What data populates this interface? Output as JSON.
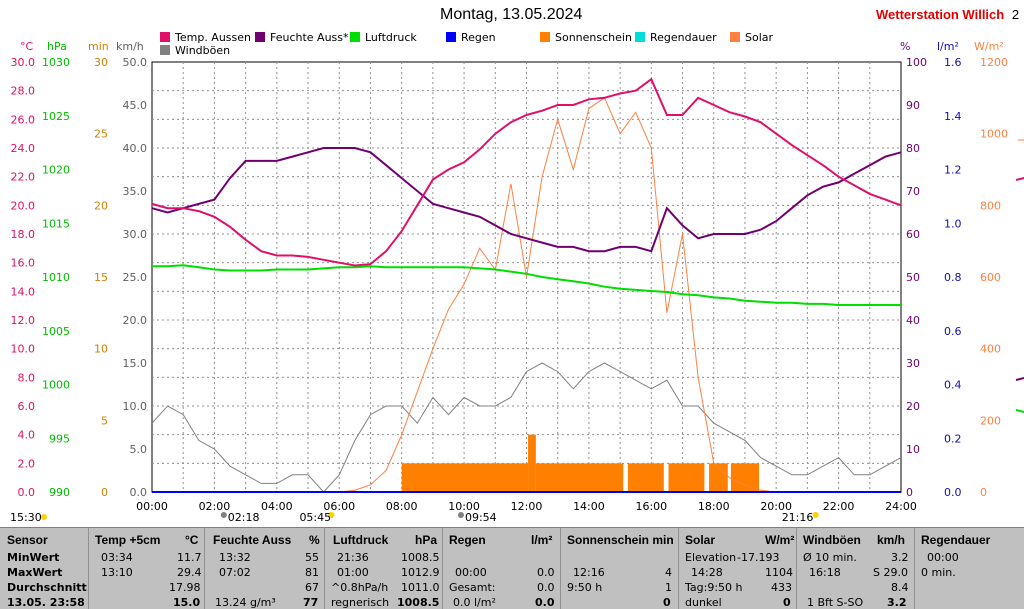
{
  "header": {
    "date_title": "Montag, 13.05.2024",
    "station_name": "Wetterstation Willich",
    "station_suffix": "2"
  },
  "legend": [
    {
      "label": "Temp. Aussen",
      "color": "#e0106a"
    },
    {
      "label": "Feuchte Auss*",
      "color": "#700070"
    },
    {
      "label": "Luftdruck",
      "color": "#00dd00"
    },
    {
      "label": "Regen",
      "color": "#0000ff"
    },
    {
      "label": "Sonnenschein",
      "color": "#ff8000"
    },
    {
      "label": "Regendauer",
      "color": "#00dddd"
    },
    {
      "label": "Solar",
      "color": "#ff8040"
    },
    {
      "label": "Windböen",
      "color": "#808080"
    }
  ],
  "axes_units": {
    "temp": "°C",
    "hpa": "hPa",
    "min": "min",
    "kmh": "km/h",
    "pct": "%",
    "lm2": "l/m²",
    "wm2": "W/m²"
  },
  "axis_ticks": {
    "temp": [
      "30.0",
      "28.0",
      "26.0",
      "24.0",
      "22.0",
      "20.0",
      "18.0",
      "16.0",
      "14.0",
      "12.0",
      "10.0",
      "8.0",
      "6.0",
      "4.0",
      "2.0",
      "0.0"
    ],
    "hpa": [
      "1030",
      "1025",
      "1020",
      "1015",
      "1010",
      "1005",
      "1000",
      "995",
      "990"
    ],
    "min": [
      "30",
      "25",
      "20",
      "15",
      "10",
      "5",
      "0"
    ],
    "kmh": [
      "50.0",
      "45.0",
      "40.0",
      "35.0",
      "30.0",
      "25.0",
      "20.0",
      "15.0",
      "10.0",
      "5.0",
      "0.0"
    ],
    "pct": [
      "100",
      "90",
      "80",
      "70",
      "60",
      "50",
      "40",
      "30",
      "20",
      "10",
      "0"
    ],
    "lm2": [
      "1.6",
      "1.4",
      "1.2",
      "1.0",
      "0.8",
      "0.6",
      "0.4",
      "0.2",
      "0.0"
    ],
    "wm2": [
      "1200",
      "1000",
      "800",
      "600",
      "400",
      "200",
      "0"
    ],
    "time": [
      "00:00",
      "02:00",
      "04:00",
      "06:00",
      "08:00",
      "10:00",
      "12:00",
      "14:00",
      "16:00",
      "18:00",
      "20:00",
      "22:00",
      "24:00"
    ]
  },
  "sun_markers": {
    "left": "15:30",
    "moonset": "02:18",
    "sunrise": "05:45",
    "moonrise": "09:54",
    "sunset": "21:16"
  },
  "chart_data": {
    "type": "line",
    "title": "Montag, 13.05.2024",
    "x": [
      0,
      0.5,
      1,
      1.5,
      2,
      2.5,
      3,
      3.5,
      4,
      4.5,
      5,
      5.5,
      6,
      6.5,
      7,
      7.5,
      8,
      8.5,
      9,
      9.5,
      10,
      10.5,
      11,
      11.5,
      12,
      12.5,
      13,
      13.5,
      14,
      14.5,
      15,
      15.5,
      16,
      16.5,
      17,
      17.5,
      18,
      18.5,
      19,
      19.5,
      20,
      20.5,
      21,
      21.5,
      22,
      22.5,
      23,
      23.5,
      24
    ],
    "xlim": [
      0,
      24
    ],
    "series": [
      {
        "name": "Temp. Aussen",
        "unit": "°C",
        "ylim": [
          0,
          30
        ],
        "values": [
          20.1,
          19.8,
          19.8,
          19.6,
          19.2,
          18.5,
          17.6,
          16.8,
          16.5,
          16.5,
          16.4,
          16.2,
          16.0,
          15.8,
          15.9,
          16.8,
          18.2,
          20.0,
          21.8,
          22.5,
          23.0,
          23.9,
          25.0,
          25.8,
          26.3,
          26.6,
          27.0,
          27.0,
          27.4,
          27.5,
          27.8,
          28.0,
          28.8,
          26.3,
          26.3,
          27.5,
          27.0,
          26.5,
          26.2,
          25.8,
          25.0,
          24.2,
          23.5,
          22.8,
          22.0,
          21.4,
          20.8,
          20.4,
          20.0
        ]
      },
      {
        "name": "Feuchte Auss*",
        "unit": "%",
        "ylim": [
          0,
          100
        ],
        "values": [
          66,
          65,
          66,
          67,
          68,
          73,
          77,
          77,
          77,
          78,
          79,
          80,
          80,
          80,
          79,
          76,
          73,
          70,
          67,
          66,
          65,
          64,
          62,
          60,
          59,
          58,
          57,
          57,
          56,
          56,
          57,
          57,
          56,
          66,
          62,
          59,
          60,
          60,
          60,
          61,
          63,
          66,
          69,
          71,
          72,
          74,
          76,
          78,
          79
        ]
      },
      {
        "name": "Luftdruck",
        "unit": "hPa",
        "ylim": [
          990,
          1030
        ],
        "values": [
          1011.0,
          1011.0,
          1011.1,
          1010.9,
          1010.7,
          1010.6,
          1010.6,
          1010.6,
          1010.7,
          1010.7,
          1010.7,
          1010.8,
          1010.9,
          1010.9,
          1011.0,
          1010.9,
          1010.9,
          1010.9,
          1010.9,
          1010.9,
          1010.9,
          1010.8,
          1010.7,
          1010.5,
          1010.3,
          1010.0,
          1009.8,
          1009.6,
          1009.4,
          1009.1,
          1008.9,
          1008.8,
          1008.7,
          1008.6,
          1008.4,
          1008.3,
          1008.1,
          1008.0,
          1007.8,
          1007.7,
          1007.6,
          1007.6,
          1007.5,
          1007.5,
          1007.4,
          1007.4,
          1007.4,
          1007.4,
          1007.4
        ]
      },
      {
        "name": "Solar",
        "unit": "W/m²",
        "ylim": [
          0,
          1200
        ],
        "values": [
          0,
          0,
          0,
          0,
          0,
          0,
          0,
          0,
          0,
          0,
          0,
          0,
          0,
          5,
          20,
          60,
          160,
          280,
          400,
          510,
          580,
          680,
          620,
          860,
          600,
          880,
          1040,
          900,
          1070,
          1100,
          1000,
          1060,
          960,
          500,
          720,
          320,
          80,
          40,
          20,
          5,
          0,
          0,
          0,
          0,
          0,
          0,
          0,
          0,
          0
        ]
      },
      {
        "name": "Windböen",
        "unit": "km/h",
        "ylim": [
          0,
          50
        ],
        "values": [
          8,
          10,
          9,
          6,
          5,
          3,
          2,
          1,
          1,
          2,
          2,
          0,
          2,
          6,
          9,
          10,
          10,
          8,
          11,
          9,
          11,
          10,
          10,
          11,
          14,
          15,
          14,
          12,
          14,
          15,
          14,
          13,
          12,
          13,
          10,
          10,
          8,
          7,
          6,
          4,
          3,
          2,
          2,
          3,
          4,
          2,
          2,
          3,
          4
        ]
      }
    ],
    "sunshine_blocks": {
      "unit": "min",
      "ylim": [
        0,
        30
      ],
      "segments": [
        {
          "start": 8.0,
          "end": 12.05,
          "value": 2.0
        },
        {
          "start": 12.05,
          "end": 12.3,
          "value": 4.0
        },
        {
          "start": 12.3,
          "end": 15.1,
          "value": 2.0
        },
        {
          "start": 15.25,
          "end": 16.4,
          "value": 2.0
        },
        {
          "start": 16.55,
          "end": 17.7,
          "value": 2.0
        },
        {
          "start": 17.85,
          "end": 18.45,
          "value": 2.0
        },
        {
          "start": 18.55,
          "end": 19.45,
          "value": 2.0
        }
      ]
    }
  },
  "table": {
    "col_sensor": {
      "header": "Sensor",
      "r1": "MinWert",
      "r2": "MaxWert",
      "r3": "Durchschnitt",
      "r4": "13.05. 23:58"
    },
    "col_temp": {
      "header": "Temp +5cm",
      "unit": "°C",
      "r1a": "03:34",
      "r1b": "11.7",
      "r2a": "13:10",
      "r2b": "29.4",
      "r3b": "17.98",
      "r4b": "15.0"
    },
    "col_feuchte": {
      "header": "Feuchte Auss",
      "unit": "%",
      "r1a": "13:32",
      "r1b": "55",
      "r2a": "07:02",
      "r2b": "81",
      "r3b": "67",
      "r4a": "13.24 g/m³",
      "r4b": "77"
    },
    "col_luft": {
      "header": "Luftdruck",
      "unit": "hPa",
      "r1a": "21:36",
      "r1b": "1008.5",
      "r2a": "01:00",
      "r2b": "1012.9",
      "r3a": "^0.8hPa/h",
      "r3b": "1011.0",
      "r4a": "regnerisch",
      "r4b": "1008.5"
    },
    "col_regen": {
      "header": "Regen",
      "unit": "l/m²",
      "r2a": "00:00",
      "r2b": "0.0",
      "r3a": "Gesamt:",
      "r3b": "0.0",
      "r4a": "0.0 l/m²",
      "r4b": "0.0"
    },
    "col_sonne": {
      "header": "Sonnenschein min",
      "r2a": "12:16",
      "r2b": "4",
      "r3a": "9:50 h",
      "r3b": "1",
      "r4b": "0"
    },
    "col_solar": {
      "header": "Solar",
      "unit": "W/m²",
      "r1a": "Elevation",
      "r1b": "-17.193",
      "r2a": "14:28",
      "r2b": "1104",
      "r3a": "Tag:9:50 h",
      "r3b": "433",
      "r4a": "dunkel",
      "r4b": "0"
    },
    "col_wind": {
      "header": "Windböen",
      "unit": "km/h",
      "r1a": "Ø 10 min.",
      "r1b": "3.2",
      "r2a": "16:18",
      "r2b": "S 29.0",
      "r3b": "8.4",
      "r4a": "1 Bft S-SO",
      "r4b": "3.2"
    },
    "col_regdauer": {
      "header": "Regendauer",
      "r1a": "00:00",
      "r2a": "0 min."
    }
  }
}
